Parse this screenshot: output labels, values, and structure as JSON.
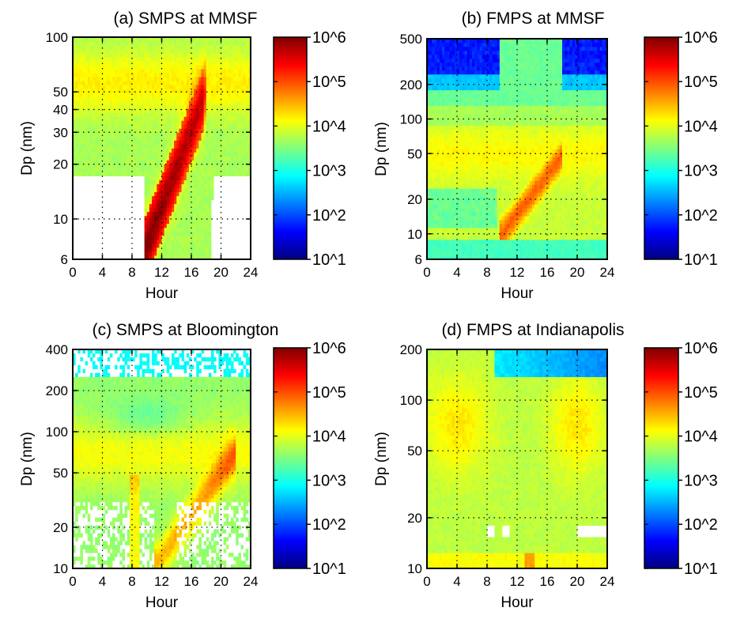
{
  "colorbar_colors": [
    "#00007f",
    "#0000ff",
    "#007fff",
    "#00ffff",
    "#7fff7f",
    "#ffff00",
    "#ff7f00",
    "#ff0000",
    "#7f0000"
  ],
  "chart_data": [
    {
      "type": "heatmap",
      "title": "(a) SMPS at MMSF",
      "xlabel": "Hour",
      "ylabel": "Dp (nm)",
      "xlim": [
        0,
        24
      ],
      "ylim": [
        6,
        100
      ],
      "y_scale": "log",
      "grid": "dotted",
      "xticks": [
        0,
        4,
        8,
        12,
        16,
        20,
        24
      ],
      "yticks": [
        6,
        10,
        20,
        30,
        40,
        50,
        100
      ],
      "colorbar_labels": [
        "10^1",
        "10^2",
        "10^3",
        "10^4",
        "10^5",
        "10^6"
      ],
      "colorbar_scale": "log",
      "colorbar_range": [
        10,
        1000000
      ]
    },
    {
      "type": "heatmap",
      "title": "(b) FMPS at MMSF",
      "xlabel": "Hour",
      "ylabel": "Dp (nm)",
      "xlim": [
        0,
        24
      ],
      "ylim": [
        6,
        500
      ],
      "y_scale": "log",
      "grid": "dotted",
      "xticks": [
        0,
        4,
        8,
        12,
        16,
        20,
        24
      ],
      "yticks": [
        6,
        10,
        20,
        50,
        100,
        200,
        500
      ],
      "colorbar_labels": [
        "10^1",
        "10^2",
        "10^3",
        "10^4",
        "10^5",
        "10^6"
      ],
      "colorbar_scale": "log",
      "colorbar_range": [
        10,
        1000000
      ]
    },
    {
      "type": "heatmap",
      "title": "(c) SMPS at Bloomington",
      "xlabel": "Hour",
      "ylabel": "Dp (nm)",
      "xlim": [
        0,
        24
      ],
      "ylim": [
        10,
        400
      ],
      "y_scale": "log",
      "grid": "dotted",
      "xticks": [
        0,
        4,
        8,
        12,
        16,
        20,
        24
      ],
      "yticks": [
        10,
        20,
        50,
        100,
        200,
        400
      ],
      "colorbar_labels": [
        "10^1",
        "10^2",
        "10^3",
        "10^4",
        "10^5",
        "10^6"
      ],
      "colorbar_scale": "log",
      "colorbar_range": [
        10,
        1000000
      ]
    },
    {
      "type": "heatmap",
      "title": "(d) FMPS at Indianapolis",
      "xlabel": "Hour",
      "ylabel": "Dp (nm)",
      "xlim": [
        0,
        24
      ],
      "ylim": [
        10,
        200
      ],
      "y_scale": "log",
      "grid": "dotted",
      "xticks": [
        0,
        4,
        8,
        12,
        16,
        20,
        24
      ],
      "yticks": [
        10,
        20,
        50,
        100,
        200
      ],
      "colorbar_labels": [
        "10^1",
        "10^2",
        "10^3",
        "10^4",
        "10^5",
        "10^6"
      ],
      "colorbar_scale": "log",
      "colorbar_range": [
        10,
        1000000
      ]
    }
  ]
}
